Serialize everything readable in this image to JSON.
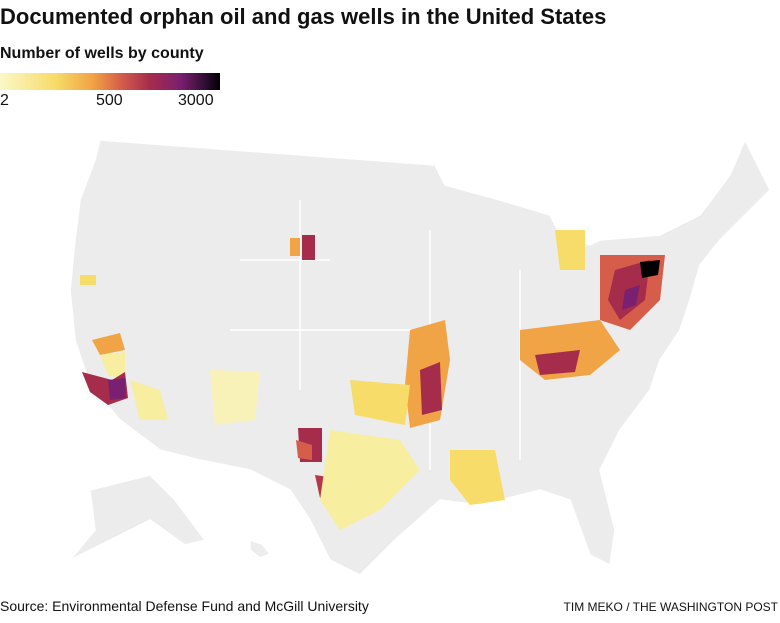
{
  "header": {
    "title": "Documented orphan oil and gas wells in the United States"
  },
  "legend": {
    "title": "Number of wells by county",
    "ticks": [
      2,
      500,
      3000
    ]
  },
  "footer": {
    "source": "Source: Environmental Defense Fund and McGill University",
    "credit": "TIM MEKO / THE WASHINGTON POST"
  }
}
